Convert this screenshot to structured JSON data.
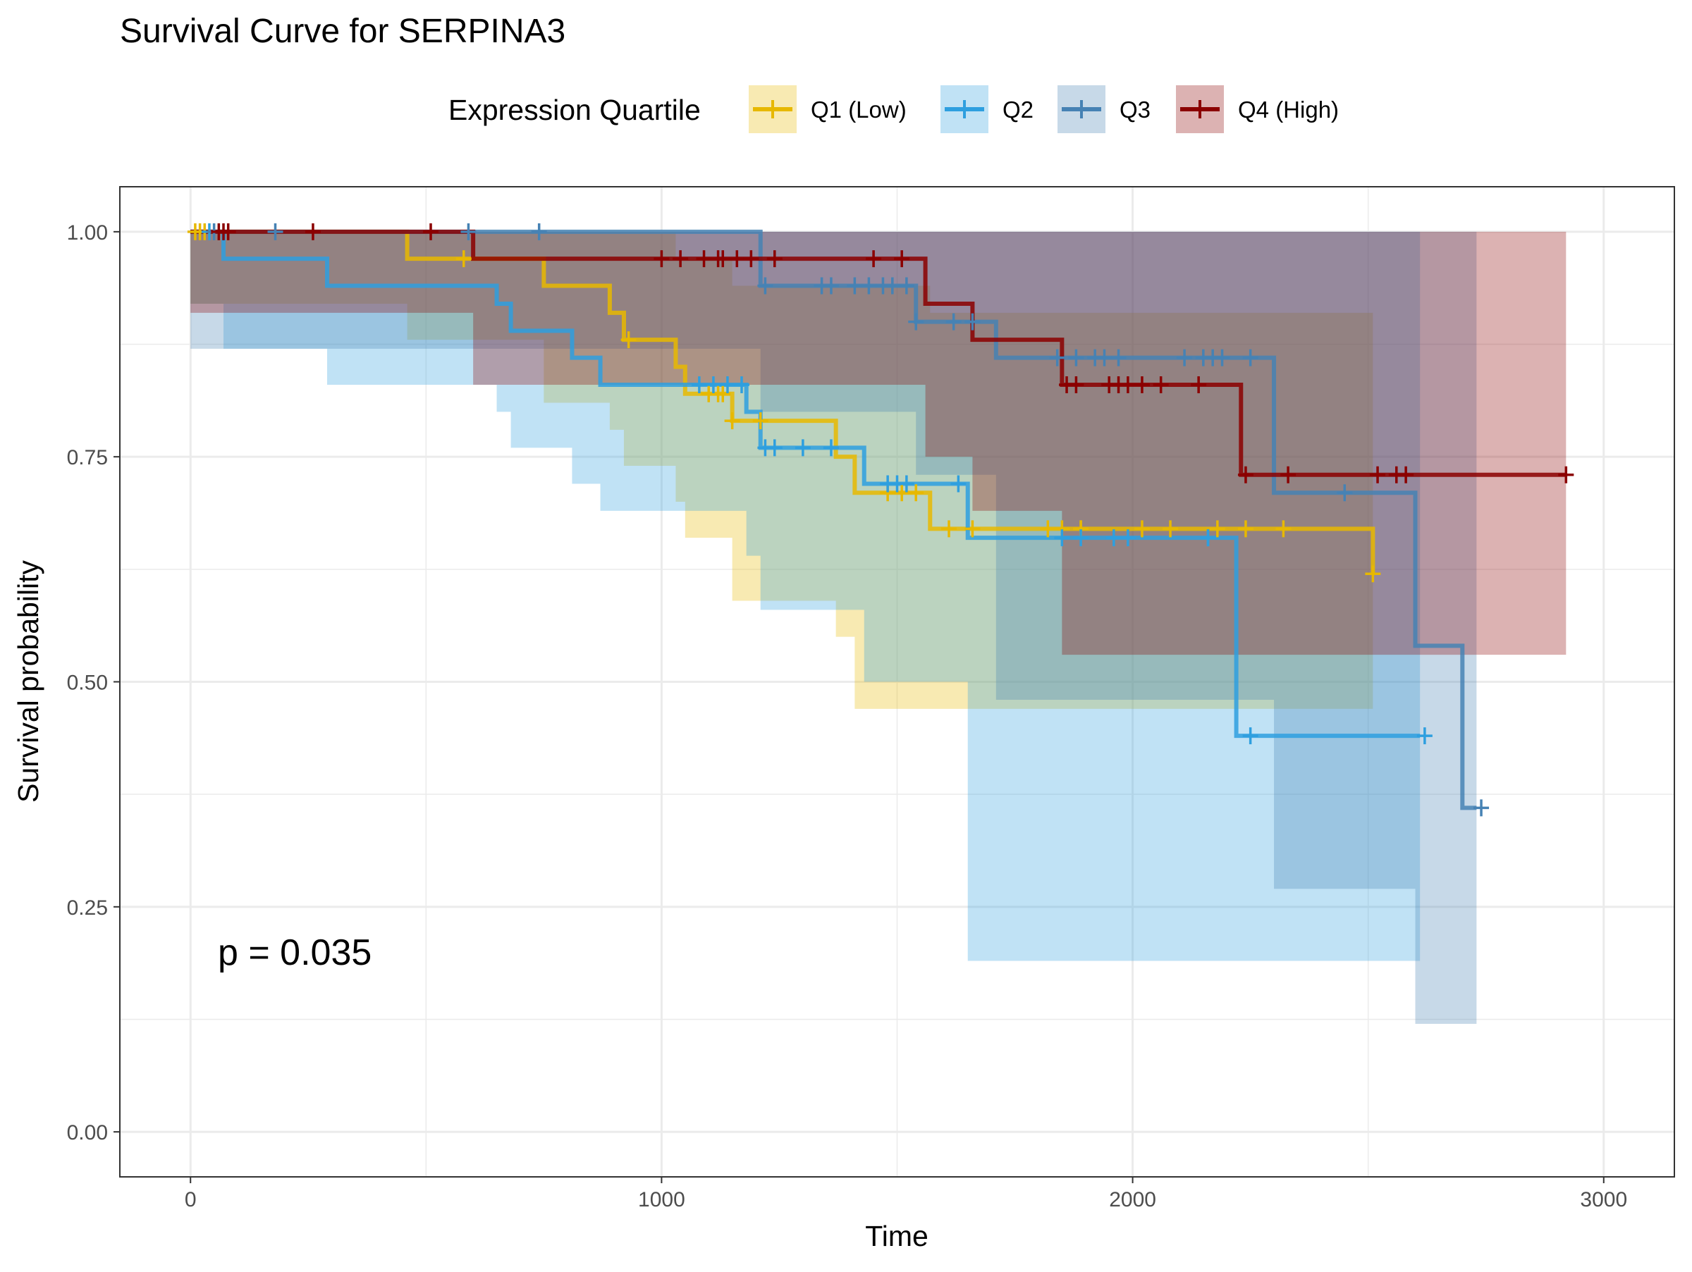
{
  "chart_data": {
    "type": "line",
    "title": "Survival Curve for SERPINA3",
    "xlabel": "Time",
    "ylabel": "Survival probability",
    "xlim": [
      -150,
      3150
    ],
    "ylim": [
      -0.05,
      1.05
    ],
    "x_ticks": [
      0,
      1000,
      2000,
      3000
    ],
    "x_tick_labels": [
      "0",
      "1000",
      "2000",
      "3000"
    ],
    "y_ticks": [
      0,
      0.25,
      0.5,
      0.75,
      1
    ],
    "y_tick_labels": [
      "0.00",
      "0.25",
      "0.50",
      "0.75",
      "1.00"
    ],
    "grid": true,
    "legend": {
      "title": "Expression Quartile",
      "position": "top"
    },
    "annotation": "p = 0.035",
    "series": [
      {
        "name": "Q1 (Low)",
        "color": "#E7B800",
        "steps": [
          [
            0,
            1.0
          ],
          [
            460,
            0.97
          ],
          [
            750,
            0.94
          ],
          [
            890,
            0.91
          ],
          [
            920,
            0.88
          ],
          [
            1030,
            0.85
          ],
          [
            1050,
            0.82
          ],
          [
            1150,
            0.79
          ],
          [
            1370,
            0.75
          ],
          [
            1410,
            0.71
          ],
          [
            1570,
            0.67
          ],
          [
            2510,
            0.62
          ]
        ],
        "ci_upper": [
          [
            0,
            1.0
          ],
          [
            460,
            1.0
          ],
          [
            890,
            1.0
          ],
          [
            1030,
            0.97
          ],
          [
            1150,
            0.94
          ],
          [
            1570,
            0.91
          ],
          [
            2510,
            0.91
          ]
        ],
        "ci_lower": [
          [
            0,
            1.0
          ],
          [
            460,
            0.92
          ],
          [
            750,
            0.88
          ],
          [
            890,
            0.81
          ],
          [
            920,
            0.78
          ],
          [
            1030,
            0.74
          ],
          [
            1050,
            0.7
          ],
          [
            1150,
            0.66
          ],
          [
            1370,
            0.59
          ],
          [
            1410,
            0.55
          ],
          [
            1570,
            0.47
          ],
          [
            2510,
            0.47
          ]
        ],
        "censor_times": [
          10,
          20,
          30,
          580,
          930,
          1100,
          1120,
          1130,
          1150,
          1210,
          1480,
          1510,
          1540,
          1610,
          1660,
          1820,
          1850,
          1890,
          1890,
          2020,
          2080,
          2180,
          2240,
          2320,
          2510
        ]
      },
      {
        "name": "Q2",
        "color": "#2E9FDF",
        "steps": [
          [
            0,
            1.0
          ],
          [
            70,
            0.97
          ],
          [
            290,
            0.94
          ],
          [
            650,
            0.92
          ],
          [
            680,
            0.89
          ],
          [
            810,
            0.86
          ],
          [
            870,
            0.83
          ],
          [
            1180,
            0.8
          ],
          [
            1210,
            0.76
          ],
          [
            1430,
            0.72
          ],
          [
            1650,
            0.66
          ],
          [
            2220,
            0.44
          ],
          [
            2610,
            0.44
          ]
        ],
        "ci_upper": [
          [
            0,
            1.0
          ],
          [
            2220,
            1.0
          ],
          [
            2610,
            1.0
          ]
        ],
        "ci_lower": [
          [
            0,
            1.0
          ],
          [
            70,
            0.92
          ],
          [
            290,
            0.87
          ],
          [
            650,
            0.83
          ],
          [
            680,
            0.8
          ],
          [
            810,
            0.76
          ],
          [
            870,
            0.72
          ],
          [
            1180,
            0.69
          ],
          [
            1210,
            0.64
          ],
          [
            1430,
            0.58
          ],
          [
            1650,
            0.5
          ],
          [
            2220,
            0.19
          ],
          [
            2610,
            0.19
          ]
        ],
        "censor_times": [
          40,
          1080,
          1110,
          1140,
          1170,
          1220,
          1240,
          1300,
          1360,
          1480,
          1500,
          1520,
          1630,
          1850,
          1890,
          1960,
          1990,
          2160,
          2160,
          2250,
          2620
        ]
      },
      {
        "name": "Q3",
        "color": "#4682B4",
        "steps": [
          [
            0,
            1.0
          ],
          [
            1210,
            0.94
          ],
          [
            1540,
            0.9
          ],
          [
            1710,
            0.86
          ],
          [
            2300,
            0.71
          ],
          [
            2600,
            0.54
          ],
          [
            2700,
            0.36
          ],
          [
            2730,
            0.36
          ]
        ],
        "ci_upper": [
          [
            0,
            1.0
          ],
          [
            2730,
            1.0
          ]
        ],
        "ci_lower": [
          [
            0,
            1.0
          ],
          [
            1210,
            0.87
          ],
          [
            1540,
            0.8
          ],
          [
            1710,
            0.73
          ],
          [
            2300,
            0.48
          ],
          [
            2600,
            0.27
          ],
          [
            2700,
            0.12
          ],
          [
            2730,
            0.12
          ]
        ],
        "censor_times": [
          50,
          180,
          590,
          740,
          1220,
          1340,
          1360,
          1410,
          1440,
          1470,
          1490,
          1520,
          1540,
          1620,
          1660,
          1840,
          1880,
          1920,
          1940,
          1970,
          2110,
          2150,
          2170,
          2190,
          2250,
          2450,
          2740
        ]
      },
      {
        "name": "Q4 (High)",
        "color": "#8B0000",
        "steps": [
          [
            0,
            1.0
          ],
          [
            600,
            0.97
          ],
          [
            1560,
            0.92
          ],
          [
            1660,
            0.88
          ],
          [
            1850,
            0.83
          ],
          [
            2230,
            0.73
          ],
          [
            2920,
            0.73
          ]
        ],
        "ci_upper": [
          [
            0,
            1.0
          ],
          [
            2920,
            1.0
          ]
        ],
        "ci_lower": [
          [
            0,
            1.0
          ],
          [
            600,
            0.91
          ],
          [
            1560,
            0.83
          ],
          [
            1660,
            0.75
          ],
          [
            1850,
            0.69
          ],
          [
            2230,
            0.53
          ],
          [
            2920,
            0.53
          ]
        ],
        "censor_times": [
          60,
          70,
          80,
          260,
          510,
          1000,
          1040,
          1090,
          1120,
          1130,
          1160,
          1190,
          1240,
          1450,
          1510,
          1860,
          1880,
          1950,
          1970,
          1990,
          2020,
          2060,
          2140,
          2240,
          2330,
          2520,
          2560,
          2580,
          2920
        ]
      }
    ]
  }
}
